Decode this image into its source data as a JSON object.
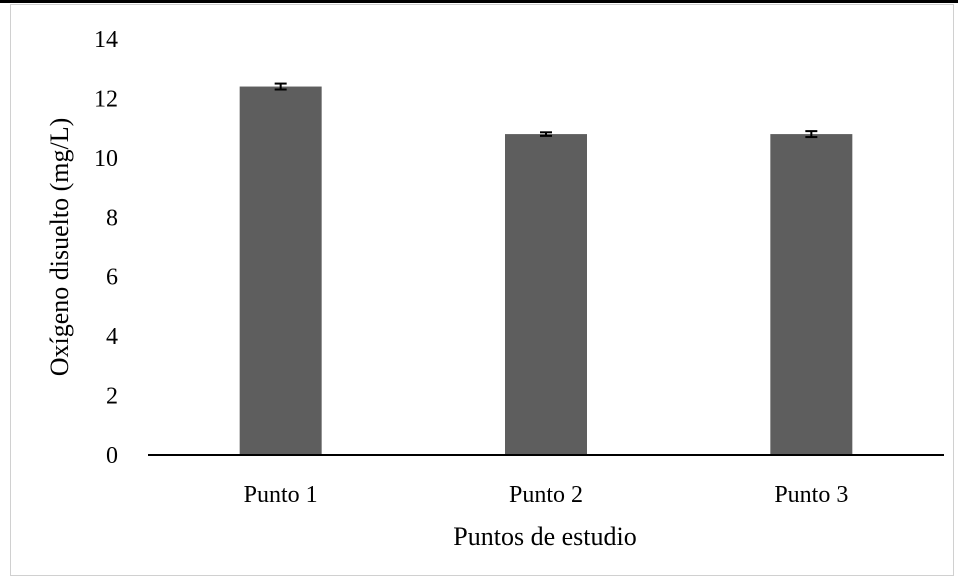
{
  "chart_data": {
    "type": "bar",
    "categories": [
      "Punto 1",
      "Punto 2",
      "Punto 3"
    ],
    "values": [
      12.4,
      10.8,
      10.8
    ],
    "errors": [
      0.1,
      0.06,
      0.1
    ],
    "xlabel": "Puntos de estudio",
    "ylabel": "Oxígeno disuelto (mg/L)",
    "ylim": [
      0,
      14
    ],
    "yticks": [
      0,
      2,
      4,
      6,
      8,
      10,
      12,
      14
    ],
    "grid": false,
    "bar_color": "#5e5e5e"
  }
}
